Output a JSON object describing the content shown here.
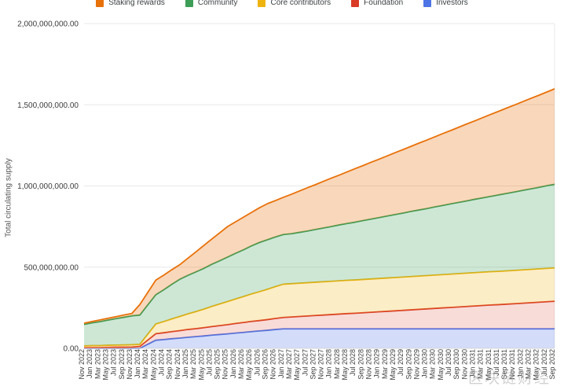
{
  "page": {
    "background": "#ffffff",
    "grid_color": "#e8e8e8",
    "axis_line_color": "#d6d6d6",
    "tick_text_color": "#3c3c3c"
  },
  "watermark": {
    "text": "区块链财经",
    "color": "#8c8c8c"
  },
  "chart_data": {
    "type": "area",
    "stacked": true,
    "title": "",
    "xlabel": "",
    "ylabel": "Total circulating supply",
    "unit": "token supply (values stored in millions)",
    "ylim_millions": [
      0,
      2000
    ],
    "grid": "horizontal",
    "legend_position": "top",
    "legend_order_top_to_bottom_stack": [
      4,
      3,
      2,
      1,
      0
    ],
    "y_ticks": [
      {
        "value": 0,
        "label": "0.00"
      },
      {
        "value": 500,
        "label": "500,000,000.00"
      },
      {
        "value": 1000,
        "label": "1,000,000,000.00"
      },
      {
        "value": 1500,
        "label": "1,500,000,000.00"
      },
      {
        "value": 2000,
        "label": "2,000,000,000.00"
      }
    ],
    "x_labels": [
      "Nov 2022",
      "Jan 2023",
      "Mar 2023",
      "May 2023",
      "Jul 2023",
      "Sep 2023",
      "Nov 2023",
      "Jan 2024",
      "Mar 2024",
      "May 2024",
      "Jul 2024",
      "Sep 2024",
      "Nov 2024",
      "Jan 2025",
      "Mar 2025",
      "May 2025",
      "Jul 2025",
      "Sep 2025",
      "Nov 2025",
      "Jan 2026",
      "Mar 2026",
      "May 2026",
      "Jul 2026",
      "Sep 2026",
      "Nov 2026",
      "Jan 2027",
      "Mar 2027",
      "May 2027",
      "Jul 2027",
      "Sep 2027",
      "Nov 2027",
      "Jan 2028",
      "Mar 2028",
      "May 2028",
      "Jul 2028",
      "Sep 2028",
      "Nov 2028",
      "Jan 2029",
      "Mar 2029",
      "May 2029",
      "Jul 2029",
      "Sep 2029",
      "Nov 2029",
      "Jan 2030",
      "Mar 2030",
      "May 2030",
      "Jul 2030",
      "Sep 2030",
      "Nov 2030",
      "Jan 2031",
      "Mar 2031",
      "May 2031",
      "Jul 2031",
      "Sep 2031",
      "Nov 2031",
      "Jan 2032",
      "Mar 2032",
      "May 2032",
      "Jul 2032",
      "Sep 2032"
    ],
    "series": [
      {
        "name": "Investors",
        "color": "#4e75e6",
        "fill": "rgba(78,117,230,0.25)",
        "values_millions": [
          0,
          0,
          0,
          0,
          0,
          0,
          0,
          0,
          25,
          50,
          54,
          59,
          63,
          68,
          72,
          76,
          81,
          85,
          89,
          94,
          98,
          103,
          107,
          111,
          116,
          120,
          120,
          120,
          120,
          120,
          120,
          120,
          120,
          120,
          120,
          120,
          120,
          120,
          120,
          120,
          120,
          120,
          120,
          120,
          120,
          120,
          120,
          120,
          120,
          120,
          120,
          120,
          120,
          120,
          120,
          120,
          120,
          120,
          120,
          120
        ]
      },
      {
        "name": "Foundation",
        "color": "#da3b26",
        "fill": "rgba(218,59,38,0.18)",
        "values_millions": [
          4,
          5,
          5,
          6,
          7,
          7,
          8,
          12,
          26,
          40,
          42,
          44,
          46,
          48,
          49,
          51,
          53,
          55,
          57,
          59,
          61,
          63,
          64,
          66,
          68,
          70,
          73,
          76,
          79,
          82,
          85,
          88,
          91,
          94,
          96,
          99,
          102,
          105,
          108,
          111,
          114,
          117,
          120,
          123,
          126,
          129,
          132,
          135,
          138,
          141,
          144,
          147,
          149,
          152,
          155,
          158,
          161,
          164,
          167,
          170
        ]
      },
      {
        "name": "Core contributors",
        "color": "#efb30f",
        "fill": "rgba(239,179,15,0.24)",
        "values_millions": [
          11,
          12,
          12,
          13,
          13,
          14,
          14,
          13,
          37,
          60,
          69,
          78,
          87,
          96,
          105,
          114,
          124,
          133,
          142,
          151,
          160,
          169,
          178,
          187,
          196,
          205,
          205,
          205,
          205,
          205,
          205,
          205,
          205,
          205,
          205,
          205,
          205,
          205,
          205,
          205,
          205,
          205,
          205,
          205,
          205,
          205,
          205,
          205,
          205,
          205,
          205,
          205,
          205,
          205,
          205,
          205,
          205,
          205,
          205,
          205
        ]
      },
      {
        "name": "Community",
        "color": "#3d9e57",
        "fill": "rgba(61,158,87,0.25)",
        "values_millions": [
          132,
          140,
          147,
          155,
          163,
          170,
          178,
          180,
          180,
          180,
          196,
          213,
          229,
          237,
          244,
          251,
          259,
          266,
          274,
          281,
          288,
          296,
          303,
          305,
          306,
          306,
          308,
          313,
          318,
          325,
          331,
          337,
          344,
          350,
          356,
          363,
          369,
          375,
          382,
          388,
          394,
          401,
          407,
          413,
          420,
          426,
          433,
          439,
          445,
          452,
          458,
          464,
          471,
          477,
          483,
          490,
          496,
          502,
          509,
          515
        ]
      },
      {
        "name": "Staking rewards",
        "color": "#e8710a",
        "fill": "rgba(232,113,10,0.28)",
        "values_millions": [
          8,
          8,
          11,
          11,
          12,
          14,
          15,
          65,
          77,
          90,
          90,
          90,
          90,
          105,
          123,
          141,
          155,
          172,
          188,
          194,
          201,
          206,
          214,
          222,
          224,
          229,
          243,
          255,
          267,
          276,
          287,
          298,
          307,
          318,
          330,
          339,
          350,
          360,
          370,
          381,
          391,
          401,
          412,
          422,
          432,
          443,
          452,
          463,
          474,
          483,
          494,
          505,
          515,
          526,
          536,
          546,
          557,
          567,
          577,
          588
        ]
      }
    ]
  }
}
